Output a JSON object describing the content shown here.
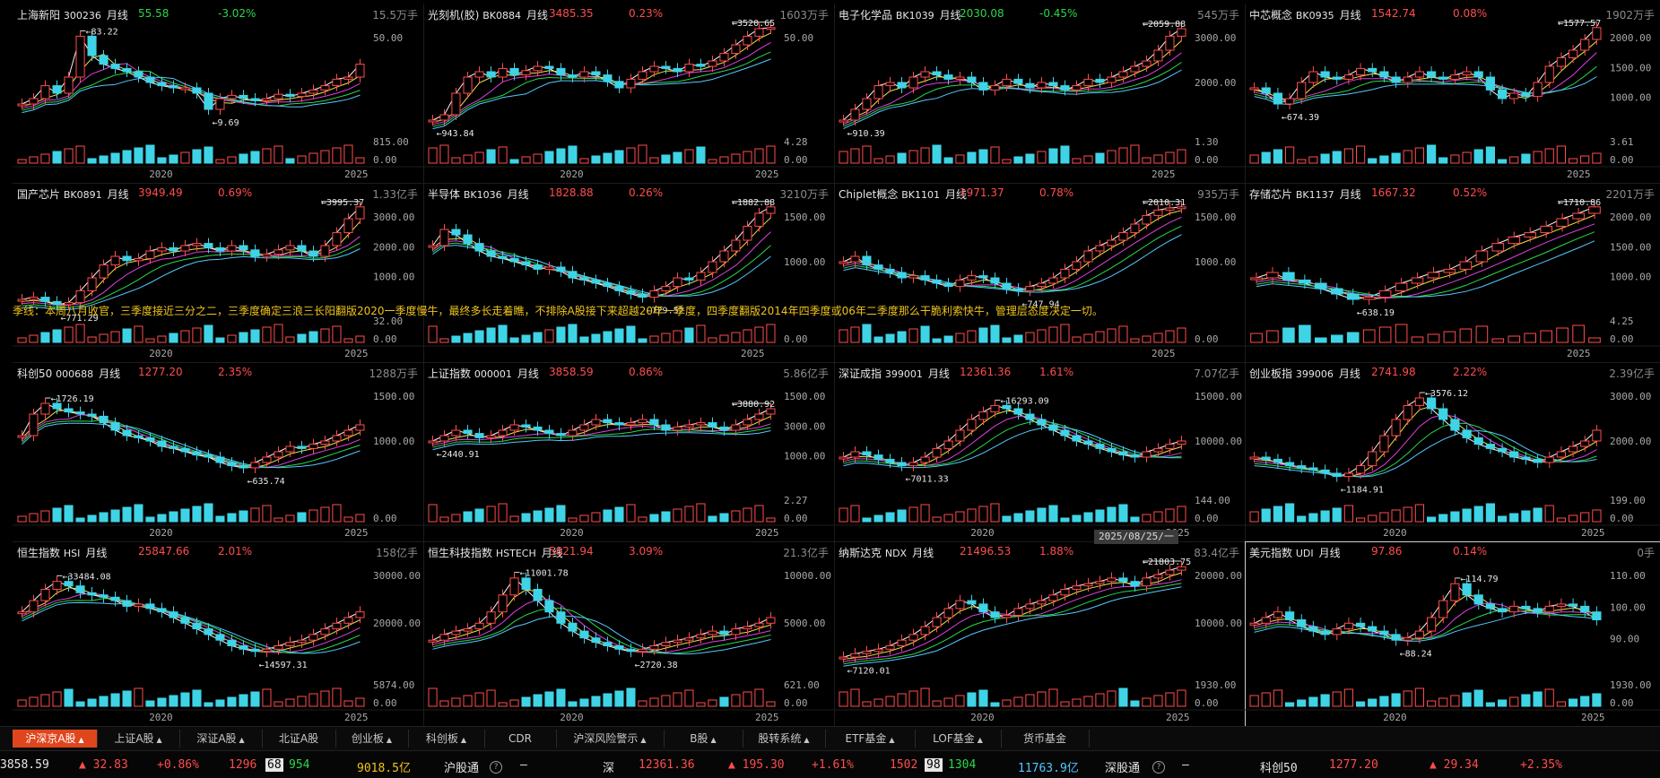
{
  "panels": [
    {
      "name": "上海新阳",
      "code": "300236",
      "period": "月线",
      "price": "55.58",
      "change": "-3.02%",
      "volume": "15.5万手",
      "up": false,
      "y_ticks": [
        "50.00"
      ],
      "vol_ticks": [
        "815.00",
        "0.00"
      ],
      "x_ticks": [
        "2020",
        "2025"
      ],
      "annotations": [
        "83.22",
        "9.69"
      ],
      "curve": [
        0.25,
        0.3,
        0.42,
        0.35,
        0.5,
        0.88,
        0.7,
        0.62,
        0.58,
        0.55,
        0.5,
        0.45,
        0.42,
        0.4,
        0.4,
        0.35,
        0.2,
        0.3,
        0.33,
        0.3,
        0.28,
        0.3,
        0.34,
        0.32,
        0.35,
        0.38,
        0.42,
        0.48,
        0.5,
        0.62
      ],
      "line_color": "#ff4d4d"
    },
    {
      "name": "光刻机(胶)",
      "code": "BK0884",
      "period": "月线",
      "price": "3485.35",
      "change": "0.23%",
      "volume": "1603万手",
      "up": true,
      "y_ticks": [
        "50.00"
      ],
      "vol_ticks": [
        "4.28",
        "0.00"
      ],
      "x_ticks": [
        "2020",
        "2025"
      ],
      "annotations": [
        "3520.65",
        "943.84"
      ],
      "curve": [
        0.1,
        0.15,
        0.35,
        0.5,
        0.55,
        0.5,
        0.58,
        0.52,
        0.56,
        0.6,
        0.58,
        0.52,
        0.5,
        0.55,
        0.52,
        0.46,
        0.4,
        0.48,
        0.55,
        0.6,
        0.58,
        0.55,
        0.62,
        0.6,
        0.65,
        0.72,
        0.8,
        0.88,
        0.95,
        0.96
      ],
      "line_color": "#ff4d4d"
    },
    {
      "name": "电子化学品",
      "code": "BK1039",
      "period": "月线",
      "price": "2030.08",
      "change": "-0.45%",
      "volume": "545万手",
      "up": false,
      "y_ticks": [
        "3000.00",
        "2000.00"
      ],
      "vol_ticks": [
        "1.30",
        "0.00"
      ],
      "x_ticks": [
        "2025"
      ],
      "annotations": [
        "2059.88",
        "910.39"
      ],
      "curve": [
        0.1,
        0.2,
        0.3,
        0.42,
        0.45,
        0.4,
        0.5,
        0.55,
        0.52,
        0.48,
        0.5,
        0.45,
        0.38,
        0.42,
        0.48,
        0.44,
        0.4,
        0.45,
        0.42,
        0.38,
        0.42,
        0.48,
        0.45,
        0.5,
        0.55,
        0.6,
        0.65,
        0.75,
        0.88,
        0.95
      ],
      "line_color": "#ff4d4d"
    },
    {
      "name": "中芯概念",
      "code": "BK0935",
      "period": "月线",
      "price": "1542.74",
      "change": "0.08%",
      "volume": "1902万手",
      "up": true,
      "y_ticks": [
        "2000.00",
        "1500.00",
        "1000.00"
      ],
      "vol_ticks": [
        "3.61",
        "0.00"
      ],
      "x_ticks": [
        "2025"
      ],
      "annotations": [
        "1577.57",
        "674.39"
      ],
      "curve": [
        0.4,
        0.35,
        0.25,
        0.3,
        0.45,
        0.55,
        0.5,
        0.48,
        0.52,
        0.58,
        0.55,
        0.5,
        0.45,
        0.5,
        0.55,
        0.5,
        0.48,
        0.52,
        0.55,
        0.5,
        0.38,
        0.3,
        0.35,
        0.32,
        0.45,
        0.6,
        0.68,
        0.75,
        0.85,
        0.96
      ],
      "line_color": "#ff4d4d"
    },
    {
      "name": "国产芯片",
      "code": "BK0891",
      "period": "月线",
      "price": "3949.49",
      "change": "0.69%",
      "volume": "1.33亿手",
      "up": true,
      "y_ticks": [
        "3000.00",
        "2000.00",
        "1000.00"
      ],
      "vol_ticks": [
        "32.00",
        "0.00"
      ],
      "x_ticks": [
        "2020",
        "2025"
      ],
      "annotations": [
        "3995.37",
        "771.29"
      ],
      "curve": [
        0.1,
        0.12,
        0.08,
        0.05,
        0.07,
        0.18,
        0.3,
        0.42,
        0.5,
        0.46,
        0.48,
        0.55,
        0.58,
        0.55,
        0.6,
        0.62,
        0.58,
        0.55,
        0.6,
        0.56,
        0.5,
        0.52,
        0.56,
        0.6,
        0.55,
        0.5,
        0.6,
        0.72,
        0.85,
        0.96
      ],
      "line_color": "#ff4d4d"
    },
    {
      "name": "半导体",
      "code": "BK1036",
      "period": "月线",
      "price": "1828.88",
      "change": "0.26%",
      "volume": "3210万手",
      "up": true,
      "y_ticks": [
        "1500.00",
        "1000.00"
      ],
      "vol_ticks": [
        "0.00"
      ],
      "x_ticks": [
        "2025"
      ],
      "annotations": [
        "1882.88",
        "729.52"
      ],
      "curve": [
        0.6,
        0.75,
        0.7,
        0.62,
        0.55,
        0.5,
        0.48,
        0.45,
        0.42,
        0.38,
        0.4,
        0.36,
        0.3,
        0.28,
        0.25,
        0.22,
        0.18,
        0.15,
        0.12,
        0.18,
        0.22,
        0.3,
        0.28,
        0.35,
        0.45,
        0.55,
        0.65,
        0.78,
        0.9,
        0.96
      ],
      "line_color": "#ff4d4d"
    },
    {
      "name": "Chiplet概念",
      "code": "BK1101",
      "period": "月线",
      "price": "1971.37",
      "change": "0.78%",
      "volume": "935万手",
      "up": true,
      "y_ticks": [
        "1500.00",
        "1000.00"
      ],
      "vol_ticks": [
        "0.00"
      ],
      "x_ticks": [
        "2025"
      ],
      "annotations": [
        "2010.31",
        "747.94"
      ],
      "curve": [
        0.45,
        0.5,
        0.42,
        0.38,
        0.35,
        0.3,
        0.32,
        0.28,
        0.25,
        0.22,
        0.28,
        0.32,
        0.3,
        0.25,
        0.2,
        0.18,
        0.22,
        0.25,
        0.3,
        0.38,
        0.45,
        0.55,
        0.6,
        0.65,
        0.72,
        0.8,
        0.88,
        0.93,
        0.95,
        0.96
      ],
      "line_color": "#ff4d4d"
    },
    {
      "name": "存储芯片",
      "code": "BK1137",
      "period": "月线",
      "price": "1667.32",
      "change": "0.52%",
      "volume": "2201万手",
      "up": true,
      "y_ticks": [
        "2000.00",
        "1500.00",
        "1000.00"
      ],
      "vol_ticks": [
        "4.25",
        "0.00"
      ],
      "x_ticks": [
        "2025"
      ],
      "annotations": [
        "1710.86",
        "638.19"
      ],
      "curve": [
        0.3,
        0.35,
        0.28,
        0.25,
        0.2,
        0.15,
        0.1,
        0.12,
        0.18,
        0.25,
        0.3,
        0.35,
        0.38,
        0.45,
        0.55,
        0.62,
        0.68,
        0.72,
        0.78,
        0.85,
        0.9,
        0.96
      ],
      "line_color": "#ff4d4d"
    },
    {
      "name": "科创50",
      "code": "000688",
      "period": "月线",
      "price": "1277.20",
      "change": "2.35%",
      "volume": "1288万手",
      "up": true,
      "y_ticks": [
        "1500.00",
        "1000.00"
      ],
      "vol_ticks": [
        "0.00"
      ],
      "x_ticks": [
        "2020",
        "2025"
      ],
      "annotations": [
        "1726.19",
        "635.74"
      ],
      "curve": [
        0.5,
        0.7,
        0.8,
        0.75,
        0.72,
        0.7,
        0.68,
        0.62,
        0.55,
        0.5,
        0.48,
        0.45,
        0.4,
        0.38,
        0.35,
        0.32,
        0.3,
        0.25,
        0.22,
        0.2,
        0.25,
        0.3,
        0.35,
        0.4,
        0.38,
        0.42,
        0.45,
        0.5,
        0.55,
        0.6
      ],
      "line_color": "#ff4d4d"
    },
    {
      "name": "上证指数",
      "code": "000001",
      "period": "月线",
      "price": "3858.59",
      "change": "0.86%",
      "volume": "5.86亿手",
      "up": true,
      "y_ticks": [
        "1500.00",
        "3000.00",
        "1000.00"
      ],
      "vol_ticks": [
        "2.27",
        "0.00"
      ],
      "x_ticks": [
        "2020",
        "2025"
      ],
      "annotations": [
        "3880.92",
        "2440.91"
      ],
      "curve": [
        0.45,
        0.5,
        0.55,
        0.52,
        0.48,
        0.5,
        0.55,
        0.6,
        0.58,
        0.55,
        0.52,
        0.5,
        0.55,
        0.6,
        0.65,
        0.62,
        0.6,
        0.62,
        0.65,
        0.6,
        0.55,
        0.58,
        0.6,
        0.62,
        0.58,
        0.55,
        0.6,
        0.65,
        0.7,
        0.75
      ],
      "line_color": "#ff4d4d"
    },
    {
      "name": "深证成指",
      "code": "399001",
      "period": "月线",
      "price": "12361.36",
      "change": "1.61%",
      "volume": "7.07亿手",
      "up": true,
      "y_ticks": [
        "15000.00",
        "10000.00"
      ],
      "vol_ticks": [
        "144.00",
        "0.00"
      ],
      "x_ticks": [
        "2020",
        "2025"
      ],
      "annotations": [
        "16293.09",
        "7011.33"
      ],
      "curve": [
        0.3,
        0.35,
        0.32,
        0.28,
        0.25,
        0.22,
        0.25,
        0.3,
        0.38,
        0.45,
        0.55,
        0.65,
        0.72,
        0.78,
        0.75,
        0.7,
        0.65,
        0.6,
        0.55,
        0.5,
        0.45,
        0.42,
        0.38,
        0.35,
        0.32,
        0.3,
        0.35,
        0.38,
        0.42,
        0.45
      ],
      "line_color": "#ff4d4d"
    },
    {
      "name": "创业板指",
      "code": "399006",
      "period": "月线",
      "price": "2741.98",
      "change": "2.22%",
      "volume": "2.39亿手",
      "up": true,
      "y_ticks": [
        "3000.00",
        "2000.00"
      ],
      "vol_ticks": [
        "199.00",
        "0.00"
      ],
      "x_ticks": [
        "2020",
        "2025"
      ],
      "annotations": [
        "3576.12",
        "1184.91"
      ],
      "curve": [
        0.3,
        0.28,
        0.25,
        0.22,
        0.2,
        0.18,
        0.15,
        0.12,
        0.15,
        0.22,
        0.35,
        0.5,
        0.65,
        0.78,
        0.85,
        0.75,
        0.65,
        0.55,
        0.48,
        0.42,
        0.38,
        0.35,
        0.3,
        0.28,
        0.25,
        0.3,
        0.35,
        0.4,
        0.45,
        0.55
      ],
      "line_color": "#ff4d4d"
    },
    {
      "name": "恒生指数",
      "code": "HSI",
      "period": "月线",
      "price": "25847.66",
      "change": "2.01%",
      "volume": "158亿手",
      "up": true,
      "y_ticks": [
        "30000.00",
        "20000.00"
      ],
      "vol_ticks": [
        "5874.00",
        "0.00"
      ],
      "x_ticks": [
        "2020",
        "2025"
      ],
      "annotations": [
        "33484.08",
        "14597.31"
      ],
      "curve": [
        0.55,
        0.65,
        0.75,
        0.82,
        0.78,
        0.72,
        0.7,
        0.68,
        0.65,
        0.6,
        0.62,
        0.58,
        0.55,
        0.5,
        0.45,
        0.4,
        0.35,
        0.3,
        0.25,
        0.22,
        0.2,
        0.22,
        0.25,
        0.28,
        0.3,
        0.35,
        0.4,
        0.45,
        0.5,
        0.55
      ],
      "line_color": "#ff4d4d"
    },
    {
      "name": "恒生科技指数",
      "code": "HSTECH",
      "period": "月线",
      "price": "5821.94",
      "change": "3.09%",
      "volume": "21.3亿手",
      "up": true,
      "y_ticks": [
        "10000.00",
        "5000.00"
      ],
      "vol_ticks": [
        "621.00",
        "0.00"
      ],
      "x_ticks": [
        "2020",
        "2025"
      ],
      "annotations": [
        "11001.78",
        "2720.38"
      ],
      "curve": [
        0.3,
        0.35,
        0.38,
        0.4,
        0.45,
        0.55,
        0.7,
        0.85,
        0.75,
        0.65,
        0.55,
        0.45,
        0.38,
        0.32,
        0.28,
        0.25,
        0.22,
        0.2,
        0.22,
        0.25,
        0.28,
        0.3,
        0.32,
        0.35,
        0.38,
        0.35,
        0.4,
        0.42,
        0.45,
        0.5
      ],
      "line_color": "#ff4d4d"
    },
    {
      "name": "纳斯达克",
      "code": "NDX",
      "period": "月线",
      "price": "21496.53",
      "change": "1.88%",
      "volume": "83.4亿手",
      "up": true,
      "y_ticks": [
        "20000.00",
        "10000.00"
      ],
      "vol_ticks": [
        "1930.00",
        "0.00"
      ],
      "x_ticks": [
        "2020",
        "2025"
      ],
      "annotations": [
        "21803.75",
        "7120.01"
      ],
      "curve": [
        0.15,
        0.18,
        0.2,
        0.22,
        0.25,
        0.3,
        0.35,
        0.42,
        0.5,
        0.58,
        0.65,
        0.62,
        0.55,
        0.5,
        0.52,
        0.58,
        0.62,
        0.65,
        0.7,
        0.75,
        0.78,
        0.8,
        0.82,
        0.85,
        0.82,
        0.78,
        0.85,
        0.88,
        0.92,
        0.95
      ],
      "line_color": "#ff4d4d"
    },
    {
      "name": "美元指数",
      "code": "UDI",
      "period": "月线",
      "price": "97.86",
      "change": "0.14%",
      "volume": "0手",
      "up": true,
      "y_ticks": [
        "110.00",
        "100.00",
        "90.00"
      ],
      "vol_ticks": [
        "1930.00",
        "0.00"
      ],
      "x_ticks": [
        "2020",
        "2025"
      ],
      "annotations": [
        "114.79",
        "88.24"
      ],
      "curve": [
        0.45,
        0.5,
        0.55,
        0.48,
        0.42,
        0.38,
        0.35,
        0.4,
        0.45,
        0.42,
        0.38,
        0.35,
        0.3,
        0.32,
        0.38,
        0.5,
        0.65,
        0.8,
        0.7,
        0.62,
        0.58,
        0.55,
        0.6,
        0.58,
        0.55,
        0.6,
        0.62,
        0.6,
        0.55,
        0.48
      ],
      "line_color": "#ff4d4d"
    }
  ],
  "note": "季线：本周八月收官，三季度接近三分之二，三季度确定三浪三长阳翻版2020一季度慢牛，最终多长走着瞧，不排除A股接下来超越20年一季度，四季度翻版2014年四季度或06年二季度那么干脆利索快牛，管理层态度决定一切。",
  "date_tip": "2025/08/25/一",
  "tabs": [
    {
      "label": "沪深京A股",
      "arrow": "▲",
      "active": true
    },
    {
      "label": "上证A股",
      "arrow": "▲",
      "active": false
    },
    {
      "label": "深证A股",
      "arrow": "▲",
      "active": false
    },
    {
      "label": "北证A股",
      "arrow": "",
      "active": false
    },
    {
      "label": "创业板",
      "arrow": "▲",
      "active": false
    },
    {
      "label": "科创板",
      "arrow": "▲",
      "active": false
    },
    {
      "label": "CDR",
      "arrow": "",
      "active": false
    },
    {
      "label": "沪深风险警示",
      "arrow": "▲",
      "active": false
    },
    {
      "label": "B股",
      "arrow": "▲",
      "active": false
    },
    {
      "label": "股转系统",
      "arrow": "▲",
      "active": false
    },
    {
      "label": "ETF基金",
      "arrow": "▲",
      "active": false
    },
    {
      "label": "LOF基金",
      "arrow": "▲",
      "active": false
    },
    {
      "label": "货币基金",
      "arrow": "",
      "active": false
    }
  ],
  "status": {
    "sh_index": "3858.59",
    "sh_change": "▲ 32.83",
    "sh_pct": "+0.86%",
    "sh_up": "1296",
    "sh_flat": "68",
    "sh_down": "954",
    "sh_amount": "9018.5亿",
    "hgt_label": "沪股通",
    "hgt_value": "—",
    "sz_label": "深",
    "sz_index": "12361.36",
    "sz_change": "▲ 195.30",
    "sz_pct": "+1.61%",
    "sz_up": "1502",
    "sz_flat": "98",
    "sz_down": "1304",
    "sz_amount": "11763.9亿",
    "sgt_label": "深股通",
    "sgt_value": "—",
    "kc_label": "科创50",
    "kc_index": "1277.20",
    "kc_change": "▲ 29.34",
    "kc_pct": "+2.35%"
  }
}
